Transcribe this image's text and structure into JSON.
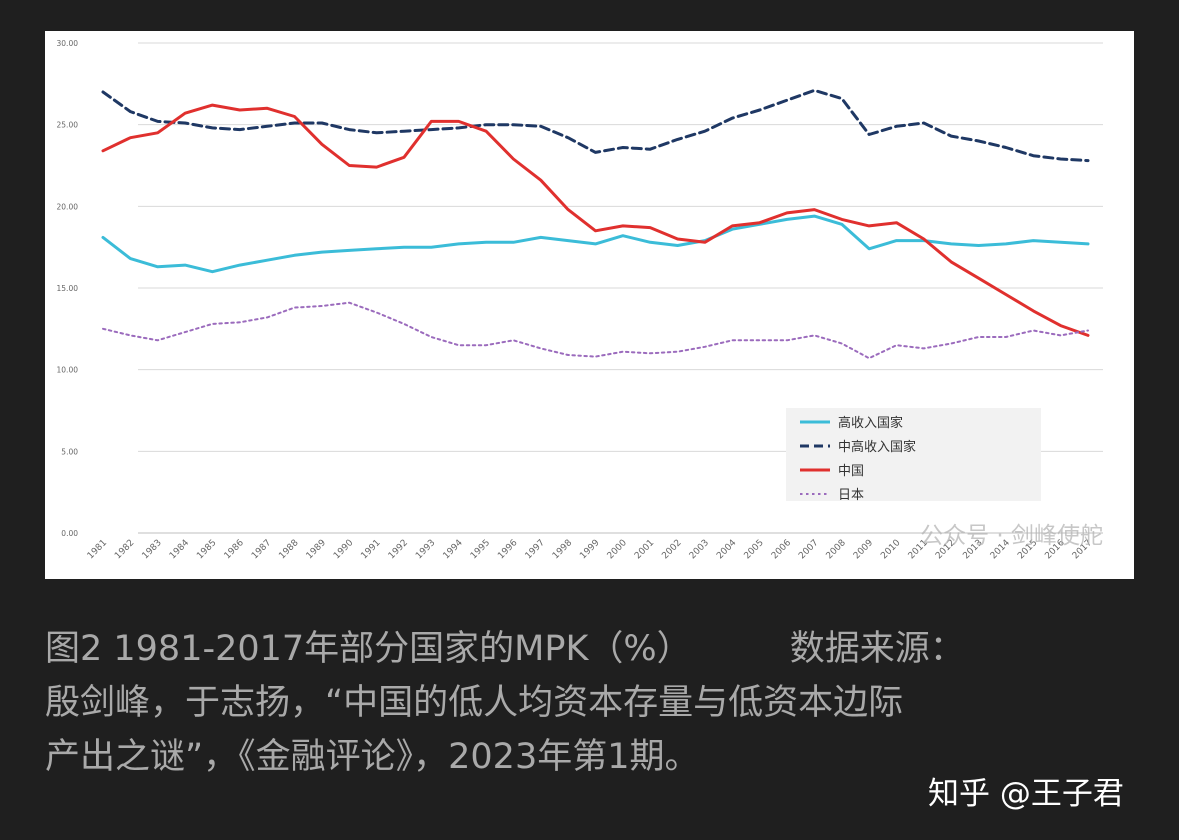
{
  "chart_data": {
    "type": "line",
    "title": "",
    "xlabel": "",
    "ylabel": "",
    "ylim": [
      0,
      30
    ],
    "y_ticks": [
      "0.00",
      "5.00",
      "10.00",
      "15.00",
      "20.00",
      "25.00",
      "30.00"
    ],
    "grid": true,
    "legend_position": "lower-right",
    "categories": [
      "1981",
      "1982",
      "1983",
      "1984",
      "1985",
      "1986",
      "1987",
      "1988",
      "1989",
      "1990",
      "1991",
      "1992",
      "1993",
      "1994",
      "1995",
      "1996",
      "1997",
      "1998",
      "1999",
      "2000",
      "2001",
      "2002",
      "2003",
      "2004",
      "2005",
      "2006",
      "2007",
      "2008",
      "2009",
      "2010",
      "2011",
      "2012",
      "2013",
      "2014",
      "2015",
      "2016",
      "2017"
    ],
    "series": [
      {
        "name": "高收入国家",
        "color": "#3bbcd8",
        "style": "solid",
        "values": [
          18.1,
          16.8,
          16.3,
          16.4,
          16.0,
          16.4,
          16.7,
          17.0,
          17.2,
          17.3,
          17.4,
          17.5,
          17.5,
          17.7,
          17.8,
          17.8,
          18.1,
          17.9,
          17.7,
          18.2,
          17.8,
          17.6,
          17.9,
          18.6,
          18.9,
          19.2,
          19.4,
          18.9,
          17.4,
          17.9,
          17.9,
          17.7,
          17.6,
          17.7,
          17.9,
          17.8,
          17.7
        ]
      },
      {
        "name": "中高收入国家",
        "color": "#1f3864",
        "style": "dashed",
        "values": [
          27.0,
          25.8,
          25.2,
          25.1,
          24.8,
          24.7,
          24.9,
          25.1,
          25.1,
          24.7,
          24.5,
          24.6,
          24.7,
          24.8,
          25.0,
          25.0,
          24.9,
          24.2,
          23.3,
          23.6,
          23.5,
          24.1,
          24.6,
          25.4,
          25.9,
          26.5,
          27.1,
          26.6,
          24.4,
          24.9,
          25.1,
          24.3,
          24.0,
          23.6,
          23.1,
          22.9,
          22.8
        ]
      },
      {
        "name": "中国",
        "color": "#e0302e",
        "style": "solid",
        "values": [
          23.4,
          24.2,
          24.5,
          25.7,
          26.2,
          25.9,
          26.0,
          25.5,
          23.8,
          22.5,
          22.4,
          23.0,
          25.2,
          25.2,
          24.6,
          22.9,
          21.6,
          19.8,
          18.5,
          18.8,
          18.7,
          18.0,
          17.8,
          18.8,
          19.0,
          19.6,
          19.8,
          19.2,
          18.8,
          19.0,
          18.0,
          16.6,
          15.6,
          14.6,
          13.6,
          12.7,
          12.1
        ]
      },
      {
        "name": "日本",
        "color": "#9b6bbd",
        "style": "dotted",
        "values": [
          12.5,
          12.1,
          11.8,
          12.3,
          12.8,
          12.9,
          13.2,
          13.8,
          13.9,
          14.1,
          13.5,
          12.8,
          12.0,
          11.5,
          11.5,
          11.8,
          11.3,
          10.9,
          10.8,
          11.1,
          11.0,
          11.1,
          11.4,
          11.8,
          11.8,
          11.8,
          12.1,
          11.6,
          10.7,
          11.5,
          11.3,
          11.6,
          12.0,
          12.0,
          12.4,
          12.1,
          12.4
        ]
      }
    ],
    "watermark": "公众号 · 剑峰使舵"
  },
  "caption": {
    "line1_a": "图2 1981-2017年部分国家的MPK（%）",
    "line1_b": "数据来源：",
    "line2": "殷剑峰，于志扬，“中国的低人均资本存量与低资本边际",
    "line3": "产出之谜”，《金融评论》，2023年第1期。"
  },
  "watermark_text": "知乎 @王子君"
}
